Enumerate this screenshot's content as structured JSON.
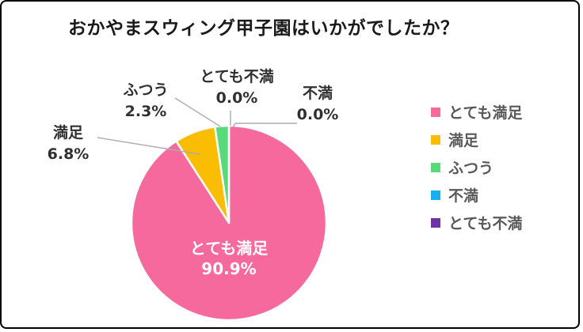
{
  "title": "おかやまスウィング甲子園はいかがでしたか？",
  "chart_data": {
    "type": "pie",
    "title": "おかやまスウィング甲子園はいかがでしたか？",
    "legend_position": "right",
    "start_angle_deg": 0,
    "direction": "clockwise",
    "units": "percent",
    "slices": [
      {
        "label": "とても満足",
        "value": 90.9,
        "pct_label": "90.9%",
        "color": "#F5699C",
        "label_placement": "inside"
      },
      {
        "label": "満足",
        "value": 6.8,
        "pct_label": "6.8%",
        "color": "#FBBC04",
        "label_placement": "outside"
      },
      {
        "label": "ふつう",
        "value": 2.3,
        "pct_label": "2.3%",
        "color": "#58DA7B",
        "label_placement": "outside"
      },
      {
        "label": "不満",
        "value": 0.0,
        "pct_label": "0.0%",
        "color": "#18AEEF",
        "label_placement": "outside"
      },
      {
        "label": "とても不満",
        "value": 0.0,
        "pct_label": "0.0%",
        "color": "#7131A3",
        "label_placement": "outside"
      }
    ],
    "colors": {
      "inside_label_text": "#ffffff",
      "outside_label_text": "#303030",
      "legend_text": "#595959",
      "leader_line": "#ABABAB",
      "slice_border": "#ffffff"
    }
  }
}
